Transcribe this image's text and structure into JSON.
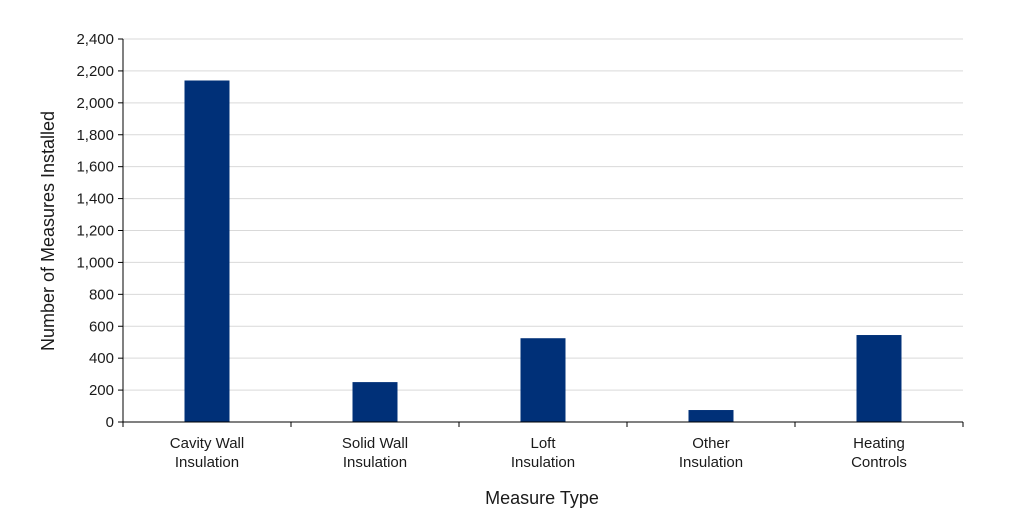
{
  "chart_data": {
    "type": "bar",
    "categories": [
      [
        "Cavity Wall",
        "Insulation"
      ],
      [
        "Solid Wall",
        "Insulation"
      ],
      [
        "Loft",
        "Insulation"
      ],
      [
        "Other",
        "Insulation"
      ],
      [
        "Heating",
        "Controls"
      ]
    ],
    "values": [
      2140,
      250,
      525,
      75,
      545
    ],
    "xlabel": "Measure Type",
    "ylabel": "Number of Measures Installed",
    "ylim": [
      0,
      2400
    ],
    "yticks": [
      "0",
      "200",
      "400",
      "600",
      "800",
      "1,000",
      "1,200",
      "1,400",
      "1,600",
      "1,800",
      "2,000",
      "2,200",
      "2,400"
    ],
    "grid": true,
    "legend": "none",
    "bar_color": "#003078"
  }
}
